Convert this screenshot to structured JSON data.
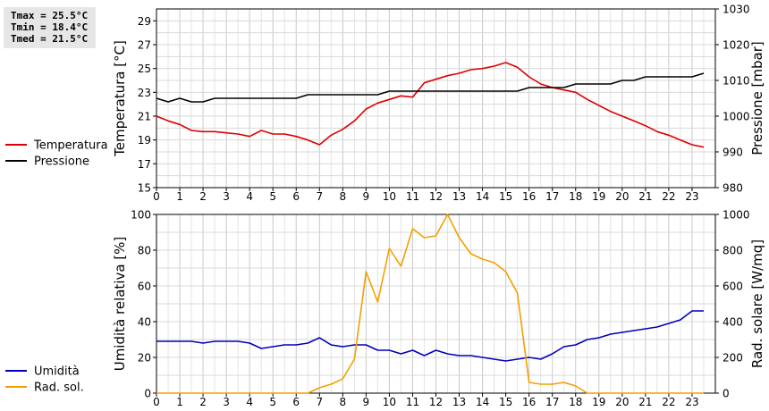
{
  "stats": {
    "tmax": "Tmax = 25.5°C",
    "tmin": "Tmin = 18.4°C",
    "tmed": "Tmed = 21.5°C"
  },
  "chart_data": [
    {
      "type": "line",
      "xlabel": "",
      "ylabel": "Temperatura [°C]",
      "ylabel_right": "Pressione [mbar]",
      "xlim": [
        0,
        24
      ],
      "ylim": [
        15,
        30
      ],
      "ylim_right": [
        980,
        1030
      ],
      "xticks": [
        "0",
        "1",
        "2",
        "3",
        "4",
        "5",
        "6",
        "7",
        "8",
        "9",
        "10",
        "11",
        "12",
        "13",
        "14",
        "15",
        "16",
        "17",
        "18",
        "19",
        "20",
        "21",
        "22",
        "23"
      ],
      "yticks": [
        "15",
        "17",
        "19",
        "21",
        "23",
        "25",
        "27",
        "29"
      ],
      "yticks_right": [
        "980",
        "990",
        "1000",
        "1010",
        "1020",
        "1030"
      ],
      "grid": true,
      "legend_position": "left",
      "series": [
        {
          "name": "Temperatura",
          "axis": "left",
          "color": "#dd0000",
          "x": [
            0,
            0.5,
            1,
            1.5,
            2,
            2.5,
            3,
            3.5,
            4,
            4.5,
            5,
            5.5,
            6,
            6.5,
            7,
            7.5,
            8,
            8.5,
            9,
            9.5,
            10,
            10.5,
            11,
            11.5,
            12,
            12.5,
            13,
            13.5,
            14,
            14.5,
            15,
            15.5,
            16,
            16.5,
            17,
            17.5,
            18,
            18.5,
            19,
            19.5,
            20,
            20.5,
            21,
            21.5,
            22,
            22.5,
            23,
            23.5
          ],
          "values": [
            21.0,
            20.6,
            20.3,
            19.8,
            19.7,
            19.7,
            19.6,
            19.5,
            19.3,
            19.8,
            19.5,
            19.5,
            19.3,
            19.0,
            18.6,
            19.4,
            19.9,
            20.6,
            21.6,
            22.1,
            22.4,
            22.7,
            22.6,
            23.8,
            24.1,
            24.4,
            24.6,
            24.9,
            25.0,
            25.2,
            25.5,
            25.1,
            24.3,
            23.7,
            23.4,
            23.2,
            23.0,
            22.4,
            21.9,
            21.4,
            21.0,
            20.6,
            20.2,
            19.7,
            19.4,
            19.0,
            18.6,
            18.4
          ]
        },
        {
          "name": "Pressione",
          "axis": "right",
          "color": "#000000",
          "x": [
            0,
            0.5,
            1,
            1.5,
            2,
            2.5,
            3,
            3.5,
            4,
            4.5,
            5,
            5.5,
            6,
            6.5,
            7,
            7.5,
            8,
            8.5,
            9,
            9.5,
            10,
            10.5,
            11,
            11.5,
            12,
            12.5,
            13,
            13.5,
            14,
            14.5,
            15,
            15.5,
            16,
            16.5,
            17,
            17.5,
            18,
            18.5,
            19,
            19.5,
            20,
            20.5,
            21,
            21.5,
            22,
            22.5,
            23,
            23.5
          ],
          "values": [
            1005,
            1004,
            1005,
            1004,
            1004,
            1005,
            1005,
            1005,
            1005,
            1005,
            1005,
            1005,
            1005,
            1006,
            1006,
            1006,
            1006,
            1006,
            1006,
            1006,
            1007,
            1007,
            1007,
            1007,
            1007,
            1007,
            1007,
            1007,
            1007,
            1007,
            1007,
            1007,
            1008,
            1008,
            1008,
            1008,
            1009,
            1009,
            1009,
            1009,
            1010,
            1010,
            1011,
            1011,
            1011,
            1011,
            1011,
            1012
          ]
        }
      ]
    },
    {
      "type": "line",
      "xlabel": "",
      "ylabel": "Umidità relativa [%]",
      "ylabel_right": "Rad. solare [W/mq]",
      "xlim": [
        0,
        24
      ],
      "ylim": [
        0,
        100
      ],
      "ylim_right": [
        0,
        1000
      ],
      "xticks": [
        "0",
        "1",
        "2",
        "3",
        "4",
        "5",
        "6",
        "7",
        "8",
        "9",
        "10",
        "11",
        "12",
        "13",
        "14",
        "15",
        "16",
        "17",
        "18",
        "19",
        "20",
        "21",
        "22",
        "23"
      ],
      "yticks": [
        "0",
        "20",
        "40",
        "60",
        "80",
        "100"
      ],
      "yticks_right": [
        "0",
        "200",
        "400",
        "600",
        "800",
        "1000"
      ],
      "grid": true,
      "legend_position": "left",
      "series": [
        {
          "name": "Umidità",
          "axis": "left",
          "color": "#0000bb",
          "x": [
            0,
            0.5,
            1,
            1.5,
            2,
            2.5,
            3,
            3.5,
            4,
            4.5,
            5,
            5.5,
            6,
            6.5,
            7,
            7.5,
            8,
            8.5,
            9,
            9.5,
            10,
            10.5,
            11,
            11.5,
            12,
            12.5,
            13,
            13.5,
            14,
            14.5,
            15,
            15.5,
            16,
            16.5,
            17,
            17.5,
            18,
            18.5,
            19,
            19.5,
            20,
            20.5,
            21,
            21.5,
            22,
            22.5,
            23,
            23.5
          ],
          "values": [
            29,
            29,
            29,
            29,
            28,
            29,
            29,
            29,
            28,
            25,
            26,
            27,
            27,
            28,
            31,
            27,
            26,
            27,
            27,
            24,
            24,
            22,
            24,
            21,
            24,
            22,
            21,
            21,
            20,
            19,
            18,
            19,
            20,
            19,
            22,
            26,
            27,
            30,
            31,
            33,
            34,
            35,
            36,
            37,
            39,
            41,
            46,
            46
          ]
        },
        {
          "name": "Rad. sol.",
          "axis": "right",
          "color": "#f0a000",
          "x": [
            0,
            0.5,
            1,
            1.5,
            2,
            2.5,
            3,
            3.5,
            4,
            4.5,
            5,
            5.5,
            6,
            6.5,
            7,
            7.5,
            8,
            8.5,
            9,
            9.5,
            10,
            10.5,
            11,
            11.5,
            12,
            12.5,
            13,
            13.5,
            14,
            14.5,
            15,
            15.5,
            16,
            16.5,
            17,
            17.5,
            18,
            18.5,
            19,
            19.5,
            20,
            20.5,
            21,
            21.5,
            22,
            22.5,
            23,
            23.5
          ],
          "values": [
            0,
            0,
            0,
            0,
            0,
            0,
            0,
            0,
            0,
            0,
            0,
            0,
            0,
            0,
            30,
            50,
            80,
            190,
            680,
            510,
            810,
            710,
            920,
            870,
            880,
            1000,
            870,
            780,
            750,
            730,
            680,
            560,
            60,
            50,
            50,
            60,
            40,
            0,
            0,
            0,
            0,
            0,
            0,
            0,
            0,
            0,
            0,
            0
          ]
        }
      ]
    }
  ]
}
